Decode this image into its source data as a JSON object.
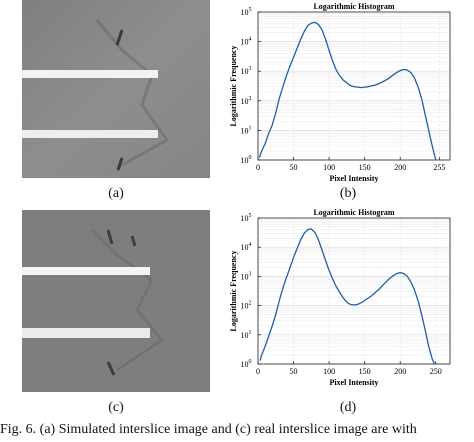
{
  "panels": {
    "a": {
      "label": "(a)"
    },
    "b": {
      "label": "(b)"
    },
    "c": {
      "label": "(c)"
    },
    "d": {
      "label": "(d)"
    }
  },
  "figure_caption": "Fig. 6.   (a) Simulated interslice image and (c) real interslice image are with",
  "chart_data": [
    {
      "type": "line",
      "title": "Logarithmic Histogram",
      "xlabel": "Pixel Intensity",
      "ylabel": "Logarithmic Frequency",
      "xlim": [
        0,
        270
      ],
      "ylim": [
        1,
        100000
      ],
      "yscale": "log",
      "grid": true,
      "x_ticks": [
        0,
        50,
        100,
        150,
        200,
        255
      ],
      "y_ticks": [
        "10^0",
        "10^1",
        "10^2",
        "10^3",
        "10^4",
        "10^5"
      ],
      "series": [
        {
          "x": [
            2,
            5,
            10,
            15,
            20,
            25,
            30,
            35,
            40,
            45,
            50,
            55,
            60,
            65,
            70,
            75,
            80,
            85,
            90,
            95,
            100,
            105,
            110,
            115,
            120,
            125,
            130,
            135,
            140,
            145,
            150,
            155,
            160,
            165,
            170,
            175,
            180,
            185,
            190,
            195,
            200,
            205,
            210,
            215,
            220,
            225,
            230,
            235,
            240,
            245,
            250
          ],
          "y": [
            1.2,
            2,
            3.5,
            8,
            15,
            40,
            120,
            300,
            700,
            1500,
            3000,
            6000,
            12000,
            22000,
            35000,
            42000,
            45000,
            38000,
            25000,
            12000,
            5000,
            2200,
            1100,
            700,
            500,
            400,
            330,
            300,
            290,
            280,
            290,
            300,
            320,
            340,
            380,
            430,
            500,
            600,
            750,
            900,
            1050,
            1150,
            1100,
            900,
            600,
            300,
            120,
            35,
            10,
            3,
            1
          ]
        }
      ]
    },
    {
      "type": "line",
      "title": "Logarithmic Histogram",
      "xlabel": "Pixel Intensity",
      "ylabel": "Logarithmic Frequency",
      "xlim": [
        0,
        270
      ],
      "ylim": [
        1,
        100000
      ],
      "yscale": "log",
      "grid": true,
      "x_ticks": [
        0,
        50,
        100,
        150,
        200,
        250
      ],
      "y_ticks": [
        "10^0",
        "10^1",
        "10^2",
        "10^3",
        "10^4",
        "10^5"
      ],
      "series": [
        {
          "x": [
            3,
            5,
            10,
            15,
            20,
            25,
            30,
            35,
            40,
            45,
            50,
            55,
            60,
            65,
            70,
            75,
            80,
            85,
            90,
            95,
            100,
            105,
            110,
            115,
            120,
            125,
            130,
            135,
            140,
            145,
            150,
            155,
            160,
            165,
            170,
            175,
            180,
            185,
            190,
            195,
            200,
            205,
            210,
            215,
            220,
            225,
            230,
            235,
            240,
            245,
            248
          ],
          "y": [
            1.3,
            2,
            4,
            9,
            20,
            50,
            150,
            400,
            900,
            2000,
            4500,
            9000,
            18000,
            30000,
            40000,
            42000,
            32000,
            18000,
            8000,
            3500,
            1600,
            800,
            450,
            280,
            180,
            130,
            110,
            105,
            110,
            125,
            150,
            180,
            220,
            280,
            360,
            480,
            650,
            850,
            1050,
            1250,
            1350,
            1250,
            1000,
            650,
            350,
            150,
            50,
            15,
            4,
            1.5,
            1
          ]
        }
      ]
    }
  ]
}
